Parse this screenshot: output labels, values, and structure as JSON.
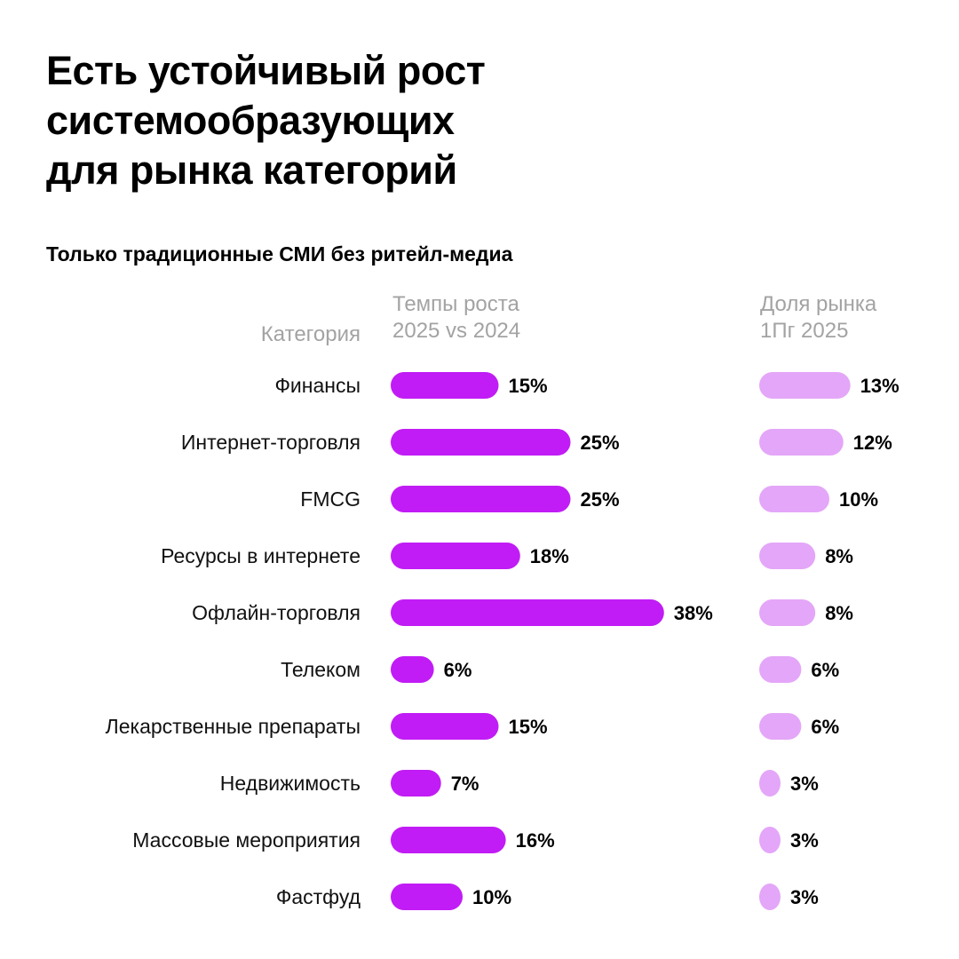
{
  "header": {
    "title_lines": [
      "Есть устойчивый рост",
      "системообразующих",
      "для рынка категорий"
    ],
    "subtitle": "Только традиционные СМИ без ритейл-медиа"
  },
  "columns": {
    "category": [
      "Категория"
    ],
    "growth": [
      "Темпы роста",
      "2025 vs 2024"
    ],
    "share": [
      "Доля рынка",
      "1Пг 2025"
    ]
  },
  "colors": {
    "growth": "#c11cf5",
    "share": "#e4a6f8"
  },
  "chart_data": {
    "type": "bar",
    "categories": [
      "Финансы",
      "Интернет-торговля",
      "FMCG",
      "Ресурсы в интернете",
      "Офлайн-торговля",
      "Телеком",
      "Лекарственные препараты",
      "Недвижимость",
      "Массовые мероприятия",
      "Фастфуд"
    ],
    "series": [
      {
        "name": "Темпы роста 2025 vs 2024",
        "values": [
          15,
          25,
          25,
          18,
          38,
          6,
          15,
          7,
          16,
          10
        ],
        "labels": [
          "15%",
          "25%",
          "25%",
          "18%",
          "38%",
          "6%",
          "15%",
          "7%",
          "16%",
          "10%"
        ]
      },
      {
        "name": "Доля рынка 1Пг 2025",
        "values": [
          13,
          12,
          10,
          8,
          8,
          6,
          6,
          3,
          3,
          3
        ],
        "labels": [
          "13%",
          "12%",
          "10%",
          "8%",
          "8%",
          "6%",
          "6%",
          "3%",
          "3%",
          "3%"
        ]
      }
    ],
    "orientation": "horizontal",
    "grid": false,
    "legend": "none"
  }
}
